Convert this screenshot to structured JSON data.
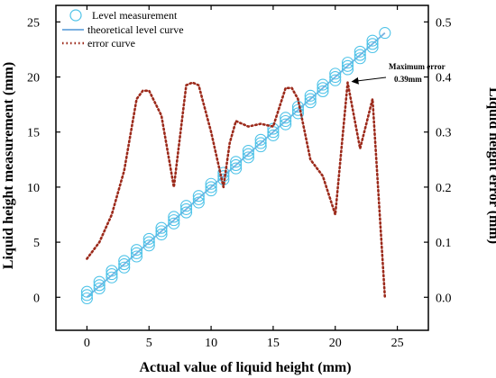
{
  "chart_data": {
    "type": "line",
    "xlabel": "Actual value of liquid height (mm)",
    "ylabel_left": "Liquid height measurement (mm)",
    "ylabel_right": "Liquid height error (mm)",
    "xlim": [
      -2.5,
      27.5
    ],
    "ylim_left": [
      -3,
      26.5
    ],
    "ylim_right": [
      -0.06,
      0.53
    ],
    "x_ticks": [
      0,
      5,
      10,
      15,
      20,
      25
    ],
    "y_left_ticks": [
      0,
      5,
      10,
      15,
      20,
      25
    ],
    "y_right_ticks": [
      0.0,
      0.1,
      0.2,
      0.3,
      0.4,
      0.5
    ],
    "y_right_tick_labels": [
      "0.0",
      "0.1",
      "0.2",
      "0.3",
      "0.4",
      "0.5"
    ],
    "grid": false,
    "legend_position": "top-left",
    "series": [
      {
        "name": "Level measurement",
        "style": "hollow circle markers",
        "color": "#4fc3e8",
        "axis": "left",
        "x": [
          0,
          0,
          0,
          1,
          1,
          1,
          2,
          2,
          2,
          3,
          3,
          3,
          4,
          4,
          4,
          5,
          5,
          5,
          6,
          6,
          6,
          7,
          7,
          7,
          8,
          8,
          8,
          9,
          9,
          9,
          10,
          10,
          10,
          11,
          11,
          11,
          12,
          12,
          12,
          13,
          13,
          13,
          14,
          14,
          14,
          15,
          15,
          15,
          16,
          16,
          16,
          17,
          17,
          17,
          18,
          18,
          18,
          19,
          19,
          19,
          20,
          20,
          20,
          21,
          21,
          21,
          22,
          22,
          22,
          23,
          23,
          23,
          24
        ],
        "y": [
          -0.1,
          0.2,
          0.5,
          0.8,
          1.1,
          1.4,
          1.8,
          2.1,
          2.4,
          2.7,
          3.0,
          3.3,
          3.7,
          4.0,
          4.3,
          4.7,
          5.0,
          5.3,
          5.7,
          6.0,
          6.3,
          6.7,
          7.0,
          7.3,
          7.7,
          8.0,
          8.3,
          8.6,
          8.9,
          9.2,
          9.7,
          10.0,
          10.3,
          10.7,
          11.0,
          11.3,
          11.7,
          12.0,
          12.3,
          12.7,
          13.0,
          13.3,
          13.7,
          14.0,
          14.3,
          14.7,
          15.0,
          15.3,
          15.7,
          16.0,
          16.3,
          16.7,
          17.0,
          17.3,
          17.7,
          18.0,
          18.3,
          18.7,
          19.0,
          19.3,
          19.7,
          20.0,
          20.3,
          20.7,
          21.0,
          21.3,
          21.7,
          22.0,
          22.3,
          22.7,
          23.0,
          23.3,
          24.0
        ]
      },
      {
        "name": "theoretical level curve",
        "style": "solid line",
        "color": "#7ab0e0",
        "axis": "left",
        "x": [
          0,
          24
        ],
        "y": [
          0,
          24
        ]
      },
      {
        "name": "error curve",
        "style": "dotted line",
        "color": "#9c2a1b",
        "axis": "right",
        "x": [
          0,
          1,
          2,
          3,
          4,
          4.5,
          5,
          6,
          7,
          8,
          8.5,
          9,
          10,
          11,
          11.5,
          12,
          13,
          14,
          15,
          16,
          16.5,
          17,
          18,
          19,
          20,
          21,
          22,
          23,
          24
        ],
        "y": [
          0.07,
          0.1,
          0.15,
          0.23,
          0.36,
          0.375,
          0.375,
          0.33,
          0.2,
          0.385,
          0.39,
          0.385,
          0.3,
          0.2,
          0.28,
          0.32,
          0.31,
          0.315,
          0.31,
          0.38,
          0.38,
          0.36,
          0.25,
          0.22,
          0.15,
          0.39,
          0.27,
          0.36,
          0.0
        ]
      }
    ],
    "annotation": {
      "text_line1": "Maximum error",
      "text_line2": "0.39mm",
      "point_x": 21,
      "point_y": 0.39,
      "axis": "right"
    }
  }
}
